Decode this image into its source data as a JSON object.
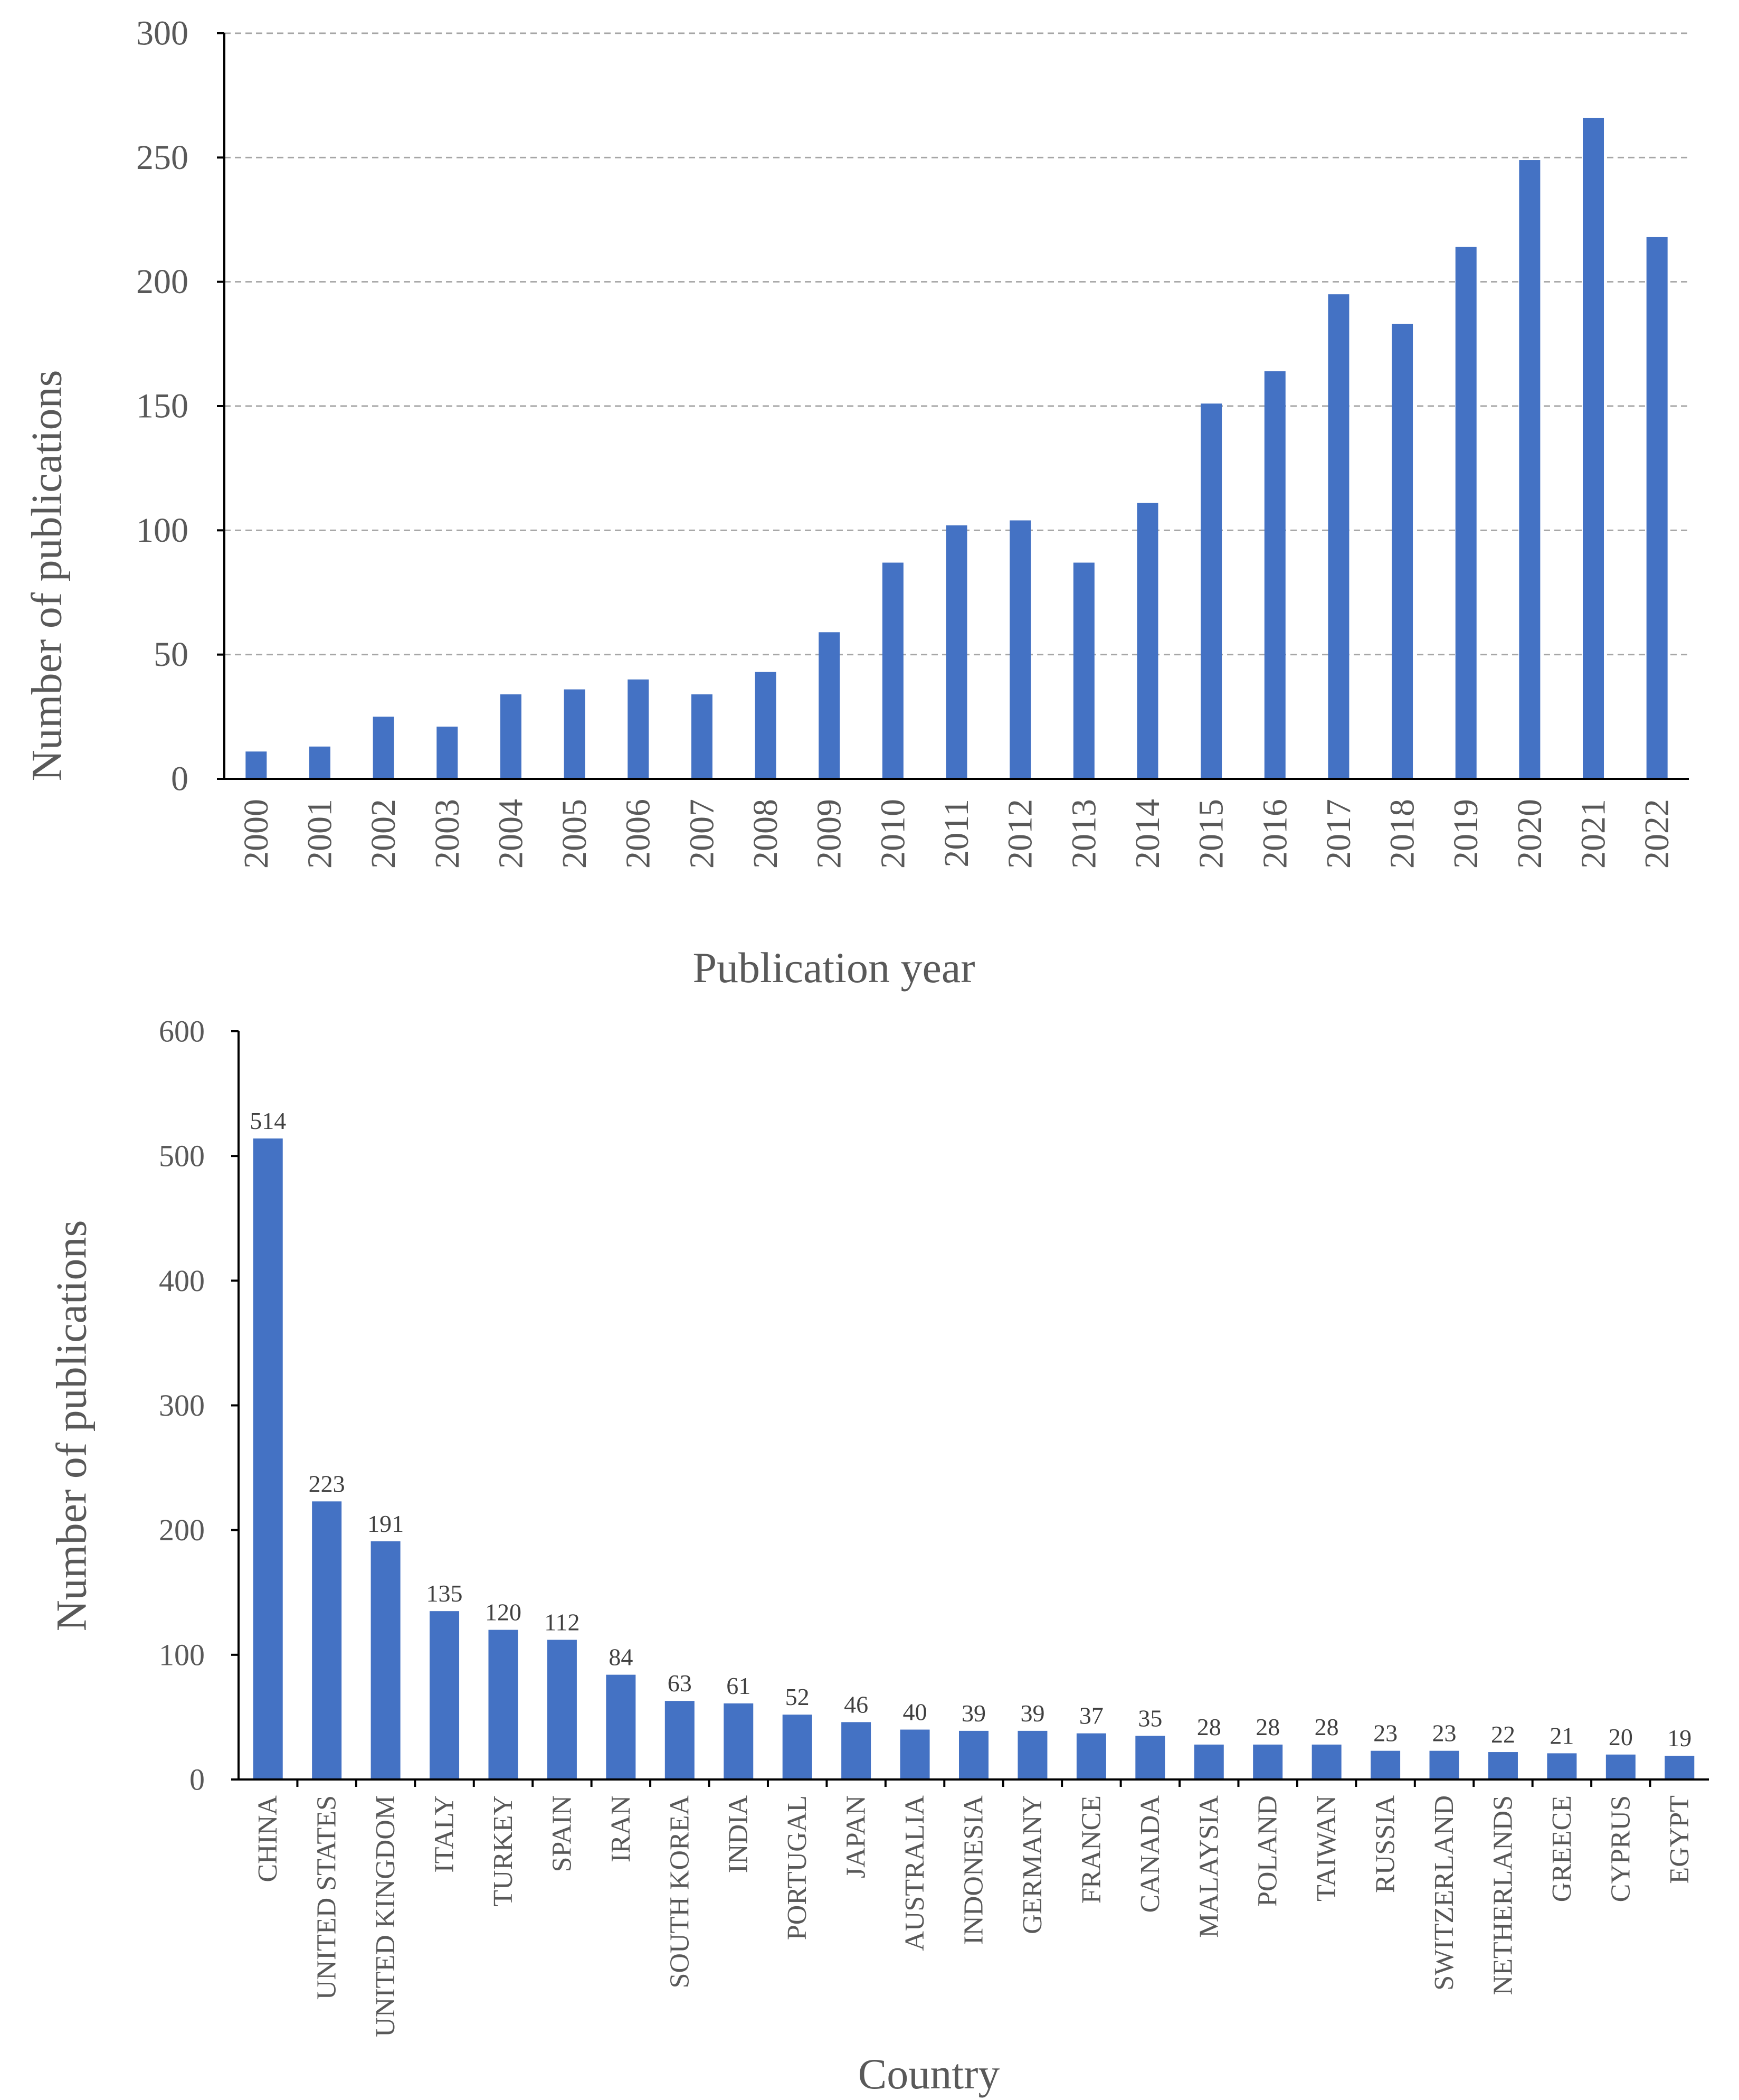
{
  "colors": {
    "bar": "#4472C4"
  },
  "chart_data": [
    {
      "type": "bar",
      "title": "",
      "xlabel": "Publication year",
      "ylabel": "Number of publications",
      "ylim": [
        0,
        300
      ],
      "yticks": [
        "0",
        "50",
        "100",
        "150",
        "200",
        "250",
        "300"
      ],
      "grid": true,
      "data_labels": false,
      "categories": [
        "2000",
        "2001",
        "2002",
        "2003",
        "2004",
        "2005",
        "2006",
        "2007",
        "2008",
        "2009",
        "2010",
        "2011",
        "2012",
        "2013",
        "2014",
        "2015",
        "2016",
        "2017",
        "2018",
        "2019",
        "2020",
        "2021",
        "2022"
      ],
      "values": [
        11,
        13,
        25,
        21,
        34,
        36,
        40,
        34,
        43,
        59,
        87,
        102,
        104,
        87,
        111,
        151,
        164,
        195,
        183,
        214,
        249,
        266,
        218
      ]
    },
    {
      "type": "bar",
      "title": "",
      "xlabel": "Country",
      "ylabel": "Number of publications",
      "ylim": [
        0,
        600
      ],
      "yticks": [
        "0",
        "100",
        "200",
        "300",
        "400",
        "500",
        "600"
      ],
      "grid": false,
      "data_labels": true,
      "categories": [
        "CHINA",
        "UNITED STATES",
        "UNITED KINGDOM",
        "ITALY",
        "TURKEY",
        "SPAIN",
        "IRAN",
        "SOUTH KOREA",
        "INDIA",
        "PORTUGAL",
        "JAPAN",
        "AUSTRALIA",
        "INDONESIA",
        "GERMANY",
        "FRANCE",
        "CANADA",
        "MALAYSIA",
        "POLAND",
        "TAIWAN",
        "RUSSIA",
        "SWITZERLAND",
        "NETHERLANDS",
        "GREECE",
        "CYPRUS",
        "EGYPT"
      ],
      "values": [
        514,
        223,
        191,
        135,
        120,
        112,
        84,
        63,
        61,
        52,
        46,
        40,
        39,
        39,
        37,
        35,
        28,
        28,
        28,
        23,
        23,
        22,
        21,
        20,
        19
      ]
    }
  ]
}
